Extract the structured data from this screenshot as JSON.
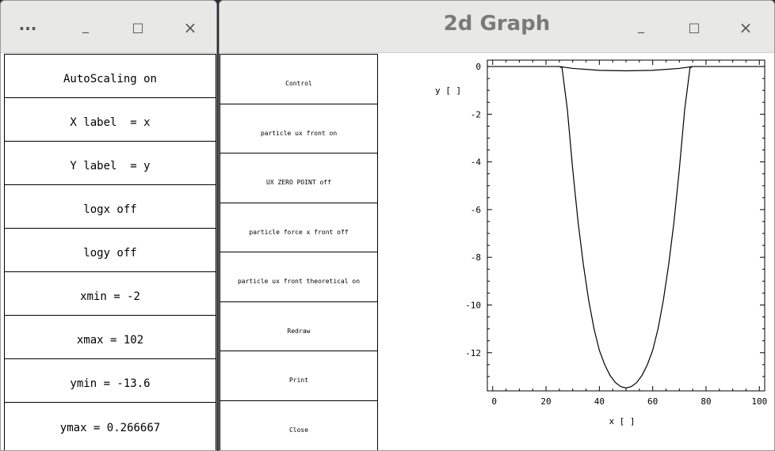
{
  "left_window": {
    "menu_label": "...",
    "minimize_label": "_",
    "maximize_label": "□",
    "close_label": "×",
    "buttons": [
      "AutoScaling on",
      "X label  = x",
      "Y label  = y",
      "logx off",
      "logy off",
      "xmin = -2",
      "xmax = 102",
      "ymin = -13.6",
      "ymax = 0.266667"
    ]
  },
  "graph_window": {
    "title": "2d Graph",
    "minimize_label": "_",
    "maximize_label": "□",
    "close_label": "×",
    "buttons": [
      "Control",
      "particle ux front on",
      "UX ZERO POINT off",
      "particle force x front off",
      "particle ux front theoretical on",
      "Redraw",
      "Print",
      "Close"
    ]
  },
  "chart_data": {
    "type": "line",
    "xlabel": "x [ ]",
    "ylabel": "y [ ]",
    "xlim": [
      -2,
      102
    ],
    "ylim": [
      -13.6,
      0.266667
    ],
    "xticks": [
      0,
      20,
      40,
      60,
      80,
      100
    ],
    "yticks": [
      0,
      -2,
      -4,
      -6,
      -8,
      -10,
      -12
    ],
    "grid": false,
    "series": [
      {
        "x": [
          -2,
          0,
          20,
          25,
          26,
          28,
          30,
          32,
          34,
          36,
          38,
          40,
          42,
          44,
          46,
          48,
          50,
          52,
          54,
          56,
          58,
          60,
          62,
          64,
          66,
          68,
          70,
          72,
          74,
          75,
          80,
          100,
          102
        ],
        "y": [
          0,
          0,
          0,
          0,
          -0.05,
          -1.8,
          -4.3,
          -6.5,
          -8.3,
          -9.8,
          -11.0,
          -11.9,
          -12.5,
          -12.95,
          -13.25,
          -13.42,
          -13.48,
          -13.42,
          -13.25,
          -12.95,
          -12.5,
          -11.9,
          -11.0,
          -9.8,
          -8.3,
          -6.5,
          -4.3,
          -1.8,
          -0.05,
          0,
          0,
          0,
          0
        ]
      },
      {
        "x": [
          25,
          30,
          40,
          50,
          60,
          70,
          75
        ],
        "y": [
          0,
          -0.08,
          -0.16,
          -0.18,
          -0.16,
          -0.08,
          0
        ]
      }
    ]
  }
}
